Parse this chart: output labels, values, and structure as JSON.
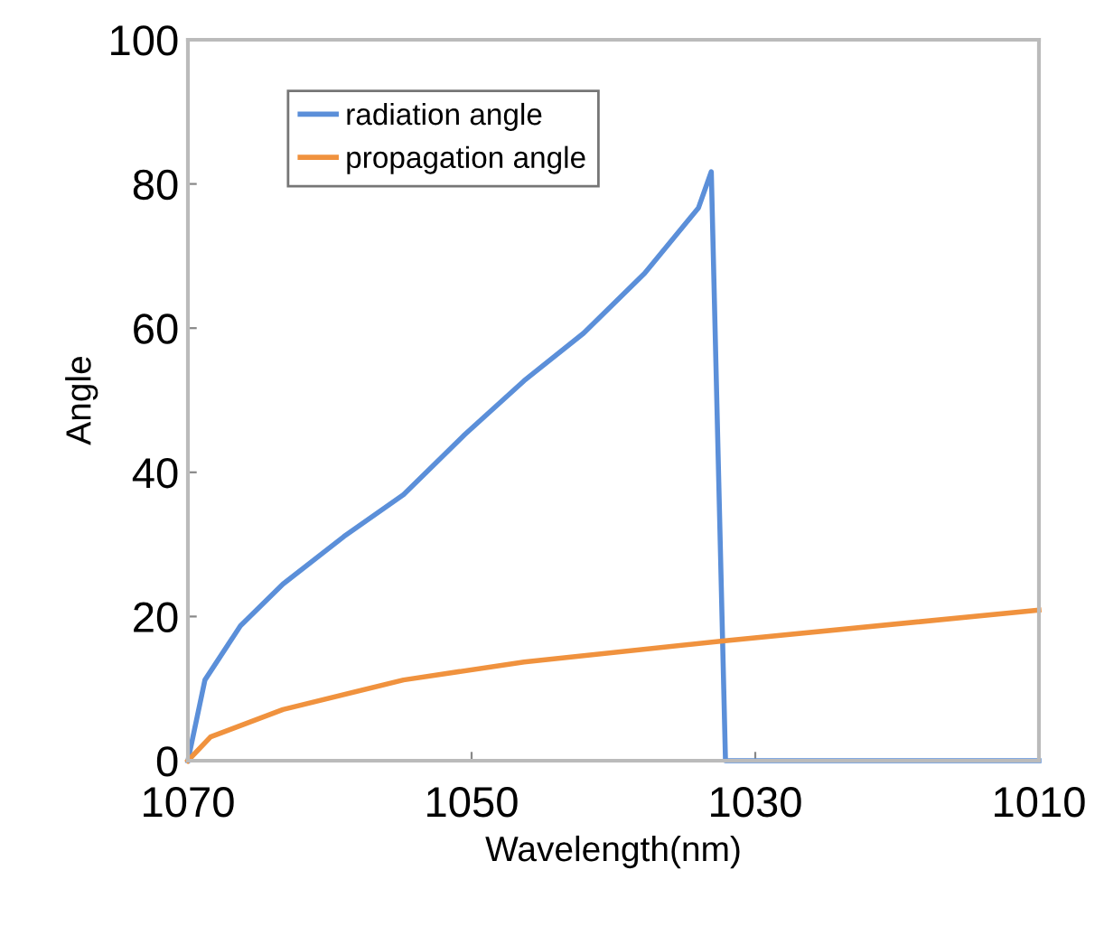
{
  "chart_data": {
    "type": "line",
    "xlabel": "Wavelength(nm)",
    "ylabel": "Angle",
    "xlim": [
      1070,
      1010
    ],
    "xticks": [
      1070,
      1050,
      1030,
      1010
    ],
    "ylim": [
      0,
      100
    ],
    "yticks": [
      0,
      20,
      40,
      60,
      80,
      100
    ],
    "grid": false,
    "legend": "top left",
    "marker": "none",
    "line_style": "solid",
    "series": [
      {
        "name": "radiation angle",
        "color": "#5b8fd9",
        "x": [
          1070,
          1068.8,
          1066.3,
          1063.3,
          1059.0,
          1054.8,
          1050.5,
          1046.3,
          1042.1,
          1037.8,
          1034.0,
          1033.1,
          1032.1,
          1010
        ],
        "values": [
          0,
          11.2,
          18.7,
          24.5,
          31.1,
          36.9,
          45.2,
          52.7,
          59.3,
          67.6,
          76.7,
          81.7,
          0,
          0
        ]
      },
      {
        "name": "propagation angle",
        "color": "#f0923e",
        "x": [
          1070,
          1068.4,
          1063.3,
          1054.8,
          1046.3,
          1032.3,
          1010
        ],
        "values": [
          0,
          3.3,
          7.1,
          11.2,
          13.7,
          16.6,
          20.9
        ]
      }
    ]
  }
}
